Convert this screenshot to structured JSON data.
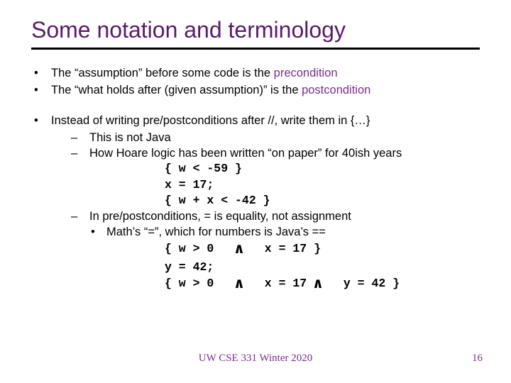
{
  "title": "Some notation and terminology",
  "colors": {
    "title": "#5a1a6b",
    "keyword": "#7b2d8e",
    "underline": "#000000",
    "text": "#000000",
    "footer": "#7b2d8e",
    "background": "#ffffff"
  },
  "bullets": {
    "b1_pre": "The “assumption” before some code is the ",
    "b1_kw": "precondition",
    "b2_pre": "The “what holds after (given assumption)” is the ",
    "b2_kw": "postcondition",
    "b3": "Instead of writing pre/postconditions after //, write them in {…}",
    "s3a": "This is not Java",
    "s3b": "How Hoare logic has been written “on paper” for 40ish years",
    "s3c": "In pre/postconditions, = is equality, not assignment",
    "ss3c": "Math’s “=”, which for numbers is Java’s =="
  },
  "code1": {
    "l1": "{ w < -59 }",
    "l2": "x = 17;",
    "l3": "{ w + x < -42 }"
  },
  "code2": {
    "l1a": "{ w > 0   ",
    "l1b": "   x = 17 }",
    "l2": "y = 42;",
    "l3a": "{ w > 0   ",
    "l3b": "   x = 17 ",
    "l3c": "   y = 42 }"
  },
  "and_symbol": "∧",
  "footer": "UW CSE 331 Winter 2020",
  "page": "16"
}
